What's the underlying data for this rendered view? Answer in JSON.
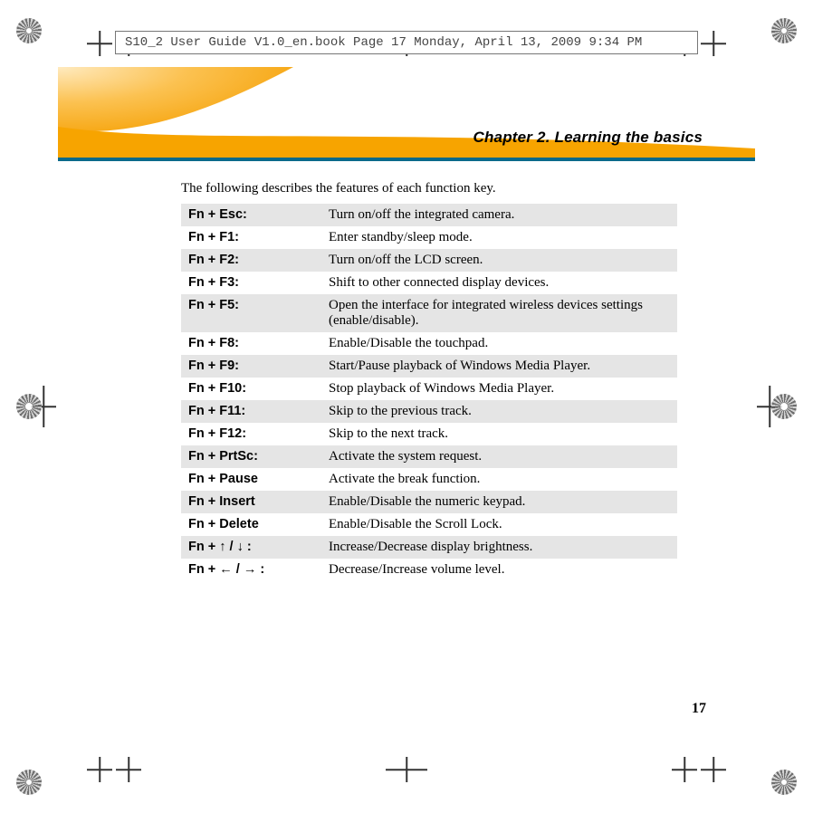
{
  "slug": "S10_2 User Guide V1.0_en.book  Page 17  Monday, April 13, 2009  9:34 PM",
  "chapter_title": "Chapter 2. Learning the basics",
  "intro": "The following describes the features of each function key.",
  "rows": [
    {
      "key": "Fn + Esc:",
      "desc": "Turn on/off the integrated camera.",
      "shade": true
    },
    {
      "key": "Fn + F1:",
      "desc": "Enter standby/sleep mode.",
      "shade": false
    },
    {
      "key": "Fn + F2:",
      "desc": "Turn on/off the LCD screen.",
      "shade": true
    },
    {
      "key": "Fn + F3:",
      "desc": "Shift to other connected display devices.",
      "shade": false
    },
    {
      "key": "Fn + F5:",
      "desc": "Open the interface for integrated wireless devices settings (enable/disable).",
      "shade": true
    },
    {
      "key": "Fn + F8:",
      "desc": "Enable/Disable the touchpad.",
      "shade": false
    },
    {
      "key": "Fn + F9:",
      "desc": "Start/Pause playback of Windows Media Player.",
      "shade": true
    },
    {
      "key": "Fn + F10:",
      "desc": "Stop playback of Windows Media Player.",
      "shade": false
    },
    {
      "key": "Fn + F11:",
      "desc": "Skip to the previous track.",
      "shade": true
    },
    {
      "key": "Fn + F12:",
      "desc": "Skip to the next track.",
      "shade": false
    },
    {
      "key": "Fn + PrtSc:",
      "desc": "Activate the system request.",
      "shade": true
    },
    {
      "key": "Fn + Pause",
      "desc": "Activate the break function.",
      "shade": false
    },
    {
      "key": "Fn + Insert",
      "desc": "Enable/Disable the numeric keypad.",
      "shade": true
    },
    {
      "key": "Fn + Delete",
      "desc": "Enable/Disable the Scroll Lock.",
      "shade": false
    },
    {
      "key": "Fn + ↑ / ↓ :",
      "desc": "Increase/Decrease display brightness.",
      "shade": true
    },
    {
      "key": "Fn + ← / → :",
      "desc": "Decrease/Increase volume level.",
      "shade": false
    }
  ],
  "page_number": "17",
  "colors": {
    "banner_gradient_start": "#f6a000",
    "banner_gradient_mid": "#ffd27a",
    "banner_ribbon": "#f7a400",
    "banner_ribbon_dark": "#0a6a8a",
    "row_shade": "#e5e5e5"
  }
}
